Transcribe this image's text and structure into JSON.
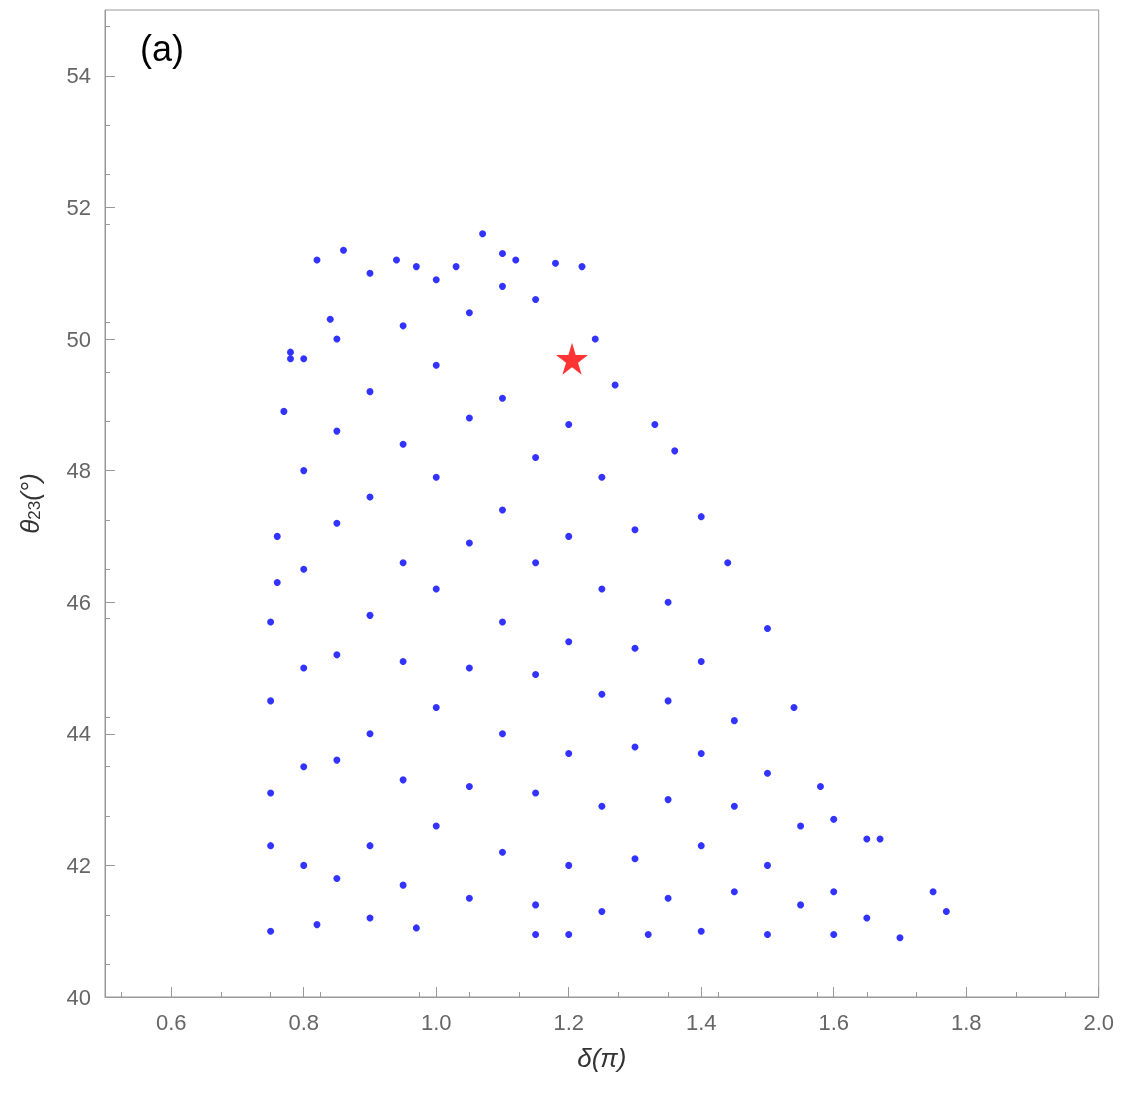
{
  "chart_data": {
    "type": "scatter",
    "xlabel": "δ(π)",
    "ylabel": "θ$_{23}$(°)",
    "annotations": [
      "(a)"
    ],
    "xlim": [
      0.5,
      2.0
    ],
    "xticks": [
      0.6,
      0.8,
      {
        "value": 1,
        "label": "1.0"
      },
      1.2,
      1.4,
      1.6,
      1.8,
      {
        "value": 2,
        "label": "2.0"
      }
    ],
    "ylim": [
      40,
      55
    ],
    "yticks": [
      40,
      42,
      44,
      46,
      48,
      50,
      52,
      54
    ],
    "grid": false,
    "series": [
      {
        "color": "#0000ff",
        "marker": "circle",
        "x": [
          0.75,
          0.75,
          0.75,
          0.75,
          0.75,
          0.76,
          0.76,
          0.77,
          0.78,
          0.78,
          0.8,
          0.82,
          0.86,
          0.84,
          0.9,
          0.94,
          0.97,
          1.0,
          1.03,
          1.07,
          1.1,
          1.12,
          1.15,
          1.18,
          1.22,
          1.24,
          1.27,
          1.33,
          1.36,
          1.4,
          1.44,
          1.5,
          1.54,
          1.58,
          1.6,
          1.65,
          1.67,
          1.75,
          1.77,
          1.7,
          1.6,
          1.5,
          1.4,
          1.32,
          1.2,
          1.15,
          0.97,
          0.9,
          0.82,
          0.8,
          0.8,
          0.8,
          0.8,
          0.8,
          0.85,
          0.85,
          0.85,
          0.85,
          0.85,
          0.85,
          0.9,
          0.9,
          0.9,
          0.9,
          0.9,
          0.95,
          0.95,
          0.95,
          0.95,
          0.95,
          0.95,
          1.0,
          1.0,
          1.0,
          1.0,
          1.0,
          1.05,
          1.05,
          1.05,
          1.05,
          1.05,
          1.05,
          1.1,
          1.1,
          1.1,
          1.1,
          1.1,
          1.1,
          1.15,
          1.15,
          1.15,
          1.15,
          1.15,
          1.2,
          1.2,
          1.2,
          1.2,
          1.2,
          1.25,
          1.25,
          1.25,
          1.25,
          1.25,
          1.3,
          1.3,
          1.3,
          1.3,
          1.35,
          1.35,
          1.35,
          1.35,
          1.4,
          1.4,
          1.4,
          1.45,
          1.45,
          1.45,
          1.5,
          1.5,
          1.55,
          1.55,
          1.6,
          1.65
        ],
        "values": [
          41.0,
          42.3,
          43.1,
          44.5,
          45.7,
          46.3,
          47.0,
          48.9,
          49.7,
          49.8,
          49.7,
          51.2,
          51.35,
          50.3,
          51.0,
          51.2,
          51.1,
          50.9,
          51.1,
          51.6,
          51.3,
          51.2,
          50.6,
          51.15,
          51.1,
          50.0,
          49.3,
          48.7,
          48.3,
          47.3,
          46.6,
          45.6,
          44.4,
          43.2,
          42.7,
          42.4,
          42.4,
          41.6,
          41.3,
          40.9,
          40.95,
          40.95,
          41.0,
          40.95,
          40.95,
          40.95,
          41.05,
          41.2,
          41.1,
          42.0,
          43.5,
          45.0,
          46.5,
          48.0,
          41.8,
          43.6,
          45.2,
          47.2,
          48.6,
          50.0,
          42.3,
          44.0,
          45.8,
          47.6,
          49.2,
          41.7,
          43.3,
          45.1,
          46.6,
          48.4,
          50.2,
          42.6,
          44.4,
          46.2,
          47.9,
          49.6,
          41.5,
          43.2,
          45.0,
          46.9,
          48.8,
          50.4,
          42.2,
          44.0,
          45.7,
          47.4,
          49.1,
          50.8,
          41.4,
          43.1,
          44.9,
          46.6,
          48.2,
          42.0,
          43.7,
          45.4,
          47.0,
          48.7,
          41.3,
          42.9,
          44.6,
          46.2,
          47.9,
          42.1,
          43.8,
          45.3,
          47.1,
          41.5,
          43.0,
          44.5,
          46.0,
          42.3,
          43.7,
          45.1,
          41.6,
          42.9,
          44.2,
          42.0,
          43.4,
          41.4,
          42.6,
          41.6,
          41.2
        ]
      },
      {
        "color": "#ff0000",
        "marker": "star",
        "x": [
          1.205
        ],
        "values": [
          49.7
        ]
      }
    ]
  }
}
